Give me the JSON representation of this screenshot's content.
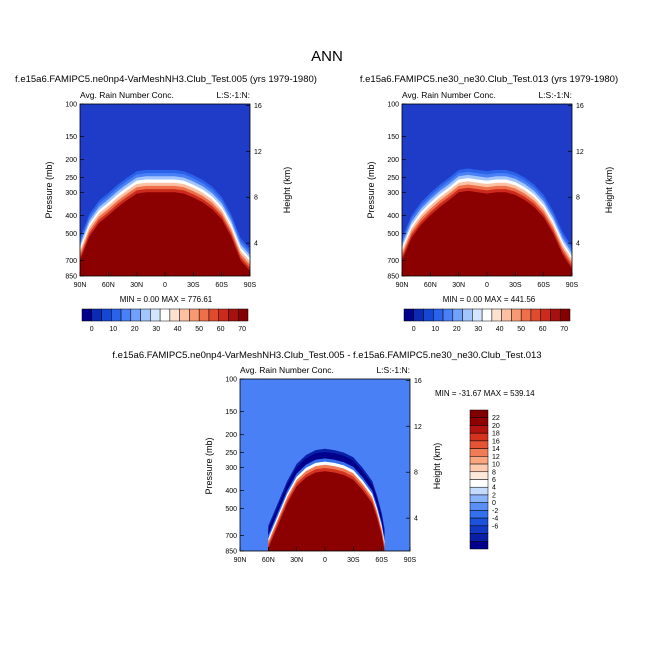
{
  "page_title": "ANN",
  "colors": {
    "scale_abs": [
      "#00008c",
      "#0c2ab4",
      "#1447d4",
      "#2b62ea",
      "#4a80f5",
      "#72a1fb",
      "#a3c5fd",
      "#d3e6fd",
      "#ffffff",
      "#fde1d0",
      "#fcc0a3",
      "#f79a73",
      "#ee6f4a",
      "#e04a2f",
      "#cb2a1c",
      "#a80f0f",
      "#850000"
    ],
    "scale_diff": [
      "#00008c",
      "#0a1fa8",
      "#1239c4",
      "#1c52dc",
      "#3470ee",
      "#5990f7",
      "#89b3fc",
      "#c4dbfe",
      "#ffffff",
      "#fde9dc",
      "#fccaaf",
      "#f8a580",
      "#f07c55",
      "#e55535",
      "#d3331f",
      "#b4140f",
      "#900000",
      "#800000"
    ],
    "bg_abs": "#1e3cc8",
    "bg_diff": "#4a80f5",
    "fill_abs": "#8b0000"
  },
  "chart_data": [
    {
      "type": "heatmap",
      "title": "f.e15a6.FAMIPC5.ne0np4-VarMeshNH3.Club_Test.005 (yrs 1979-1980)",
      "subtitle_left": "Avg. Rain Number Conc.",
      "subtitle_right": "L:S:-1:N:",
      "xlabel": "",
      "ylabel": "Pressure (mb)",
      "ylabel_right": "Height (km)",
      "x_ticks": [
        "90N",
        "60N",
        "30N",
        "0",
        "30S",
        "60S",
        "90S"
      ],
      "y_ticks": [
        "100",
        "150",
        "200",
        "250",
        "300",
        "400",
        "500",
        "700",
        "850"
      ],
      "y_ticks_right": [
        "16",
        "12",
        "8",
        "4"
      ],
      "ylim": [
        100,
        850
      ],
      "y_scale": "log",
      "stats_text": "MIN =   0.00  MAX = 776.61",
      "colorbar_labels": [
        "0",
        "10",
        "20",
        "30",
        "40",
        "50",
        "60",
        "70"
      ],
      "colorbar_orientation": "horizontal",
      "boundary_pressure": [
        [
          90,
          700
        ],
        [
          80,
          520
        ],
        [
          70,
          440
        ],
        [
          60,
          400
        ],
        [
          50,
          360
        ],
        [
          40,
          330
        ],
        [
          30,
          305
        ],
        [
          20,
          300
        ],
        [
          10,
          300
        ],
        [
          0,
          300
        ],
        [
          -10,
          300
        ],
        [
          -20,
          305
        ],
        [
          -30,
          320
        ],
        [
          -40,
          340
        ],
        [
          -50,
          370
        ],
        [
          -60,
          420
        ],
        [
          -70,
          520
        ],
        [
          -80,
          700
        ],
        [
          -90,
          800
        ]
      ]
    },
    {
      "type": "heatmap",
      "title": "f.e15a6.FAMIPC5.ne30_ne30.Club_Test.013 (yrs 1979-1980)",
      "subtitle_left": "Avg. Rain Number Conc.",
      "subtitle_right": "L:S:-1:N:",
      "xlabel": "",
      "ylabel": "Pressure (mb)",
      "ylabel_right": "Height (km)",
      "x_ticks": [
        "90N",
        "60N",
        "30N",
        "0",
        "30S",
        "60S",
        "90S"
      ],
      "y_ticks": [
        "100",
        "150",
        "200",
        "250",
        "300",
        "400",
        "500",
        "700",
        "850"
      ],
      "y_ticks_right": [
        "16",
        "12",
        "8",
        "4"
      ],
      "ylim": [
        100,
        850
      ],
      "y_scale": "log",
      "stats_text": "MIN =   0.00  MAX = 441.56",
      "colorbar_labels": [
        "0",
        "10",
        "20",
        "30",
        "40",
        "50",
        "60",
        "70"
      ],
      "colorbar_orientation": "horizontal",
      "boundary_pressure": [
        [
          90,
          700
        ],
        [
          80,
          530
        ],
        [
          70,
          450
        ],
        [
          60,
          400
        ],
        [
          50,
          360
        ],
        [
          40,
          330
        ],
        [
          30,
          300
        ],
        [
          20,
          295
        ],
        [
          10,
          300
        ],
        [
          0,
          305
        ],
        [
          -10,
          300
        ],
        [
          -20,
          300
        ],
        [
          -30,
          310
        ],
        [
          -40,
          330
        ],
        [
          -50,
          360
        ],
        [
          -60,
          410
        ],
        [
          -70,
          500
        ],
        [
          -80,
          650
        ],
        [
          -90,
          780
        ]
      ]
    },
    {
      "type": "heatmap",
      "title": "f.e15a6.FAMIPC5.ne0np4-VarMeshNH3.Club_Test.005 - f.e15a6.FAMIPC5.ne30_ne30.Club_Test.013",
      "subtitle_left": "Avg. Rain Number Conc.",
      "subtitle_right": "L:S:-1:N:",
      "xlabel": "",
      "ylabel": "Pressure (mb)",
      "ylabel_right": "Height (km)",
      "x_ticks": [
        "90N",
        "60N",
        "30N",
        "0",
        "30S",
        "60S",
        "90S"
      ],
      "y_ticks": [
        "100",
        "150",
        "200",
        "250",
        "300",
        "400",
        "500",
        "700",
        "850"
      ],
      "y_ticks_right": [
        "16",
        "12",
        "8",
        "4"
      ],
      "ylim": [
        100,
        850
      ],
      "y_scale": "log",
      "stats_text": "MIN = -31.67  MAX = 539.14",
      "colorbar_labels": [
        "22",
        "20",
        "18",
        "16",
        "14",
        "12",
        "10",
        "8",
        "6",
        "4",
        "2",
        "0",
        "-2",
        "-4",
        "-6"
      ],
      "colorbar_orientation": "vertical",
      "boundary_pressure": [
        [
          60,
          820
        ],
        [
          50,
          620
        ],
        [
          40,
          470
        ],
        [
          30,
          380
        ],
        [
          20,
          340
        ],
        [
          10,
          320
        ],
        [
          0,
          315
        ],
        [
          -10,
          320
        ],
        [
          -20,
          330
        ],
        [
          -30,
          350
        ],
        [
          -40,
          400
        ],
        [
          -50,
          470
        ],
        [
          -55,
          560
        ],
        [
          -60,
          700
        ],
        [
          -63,
          850
        ]
      ]
    }
  ]
}
